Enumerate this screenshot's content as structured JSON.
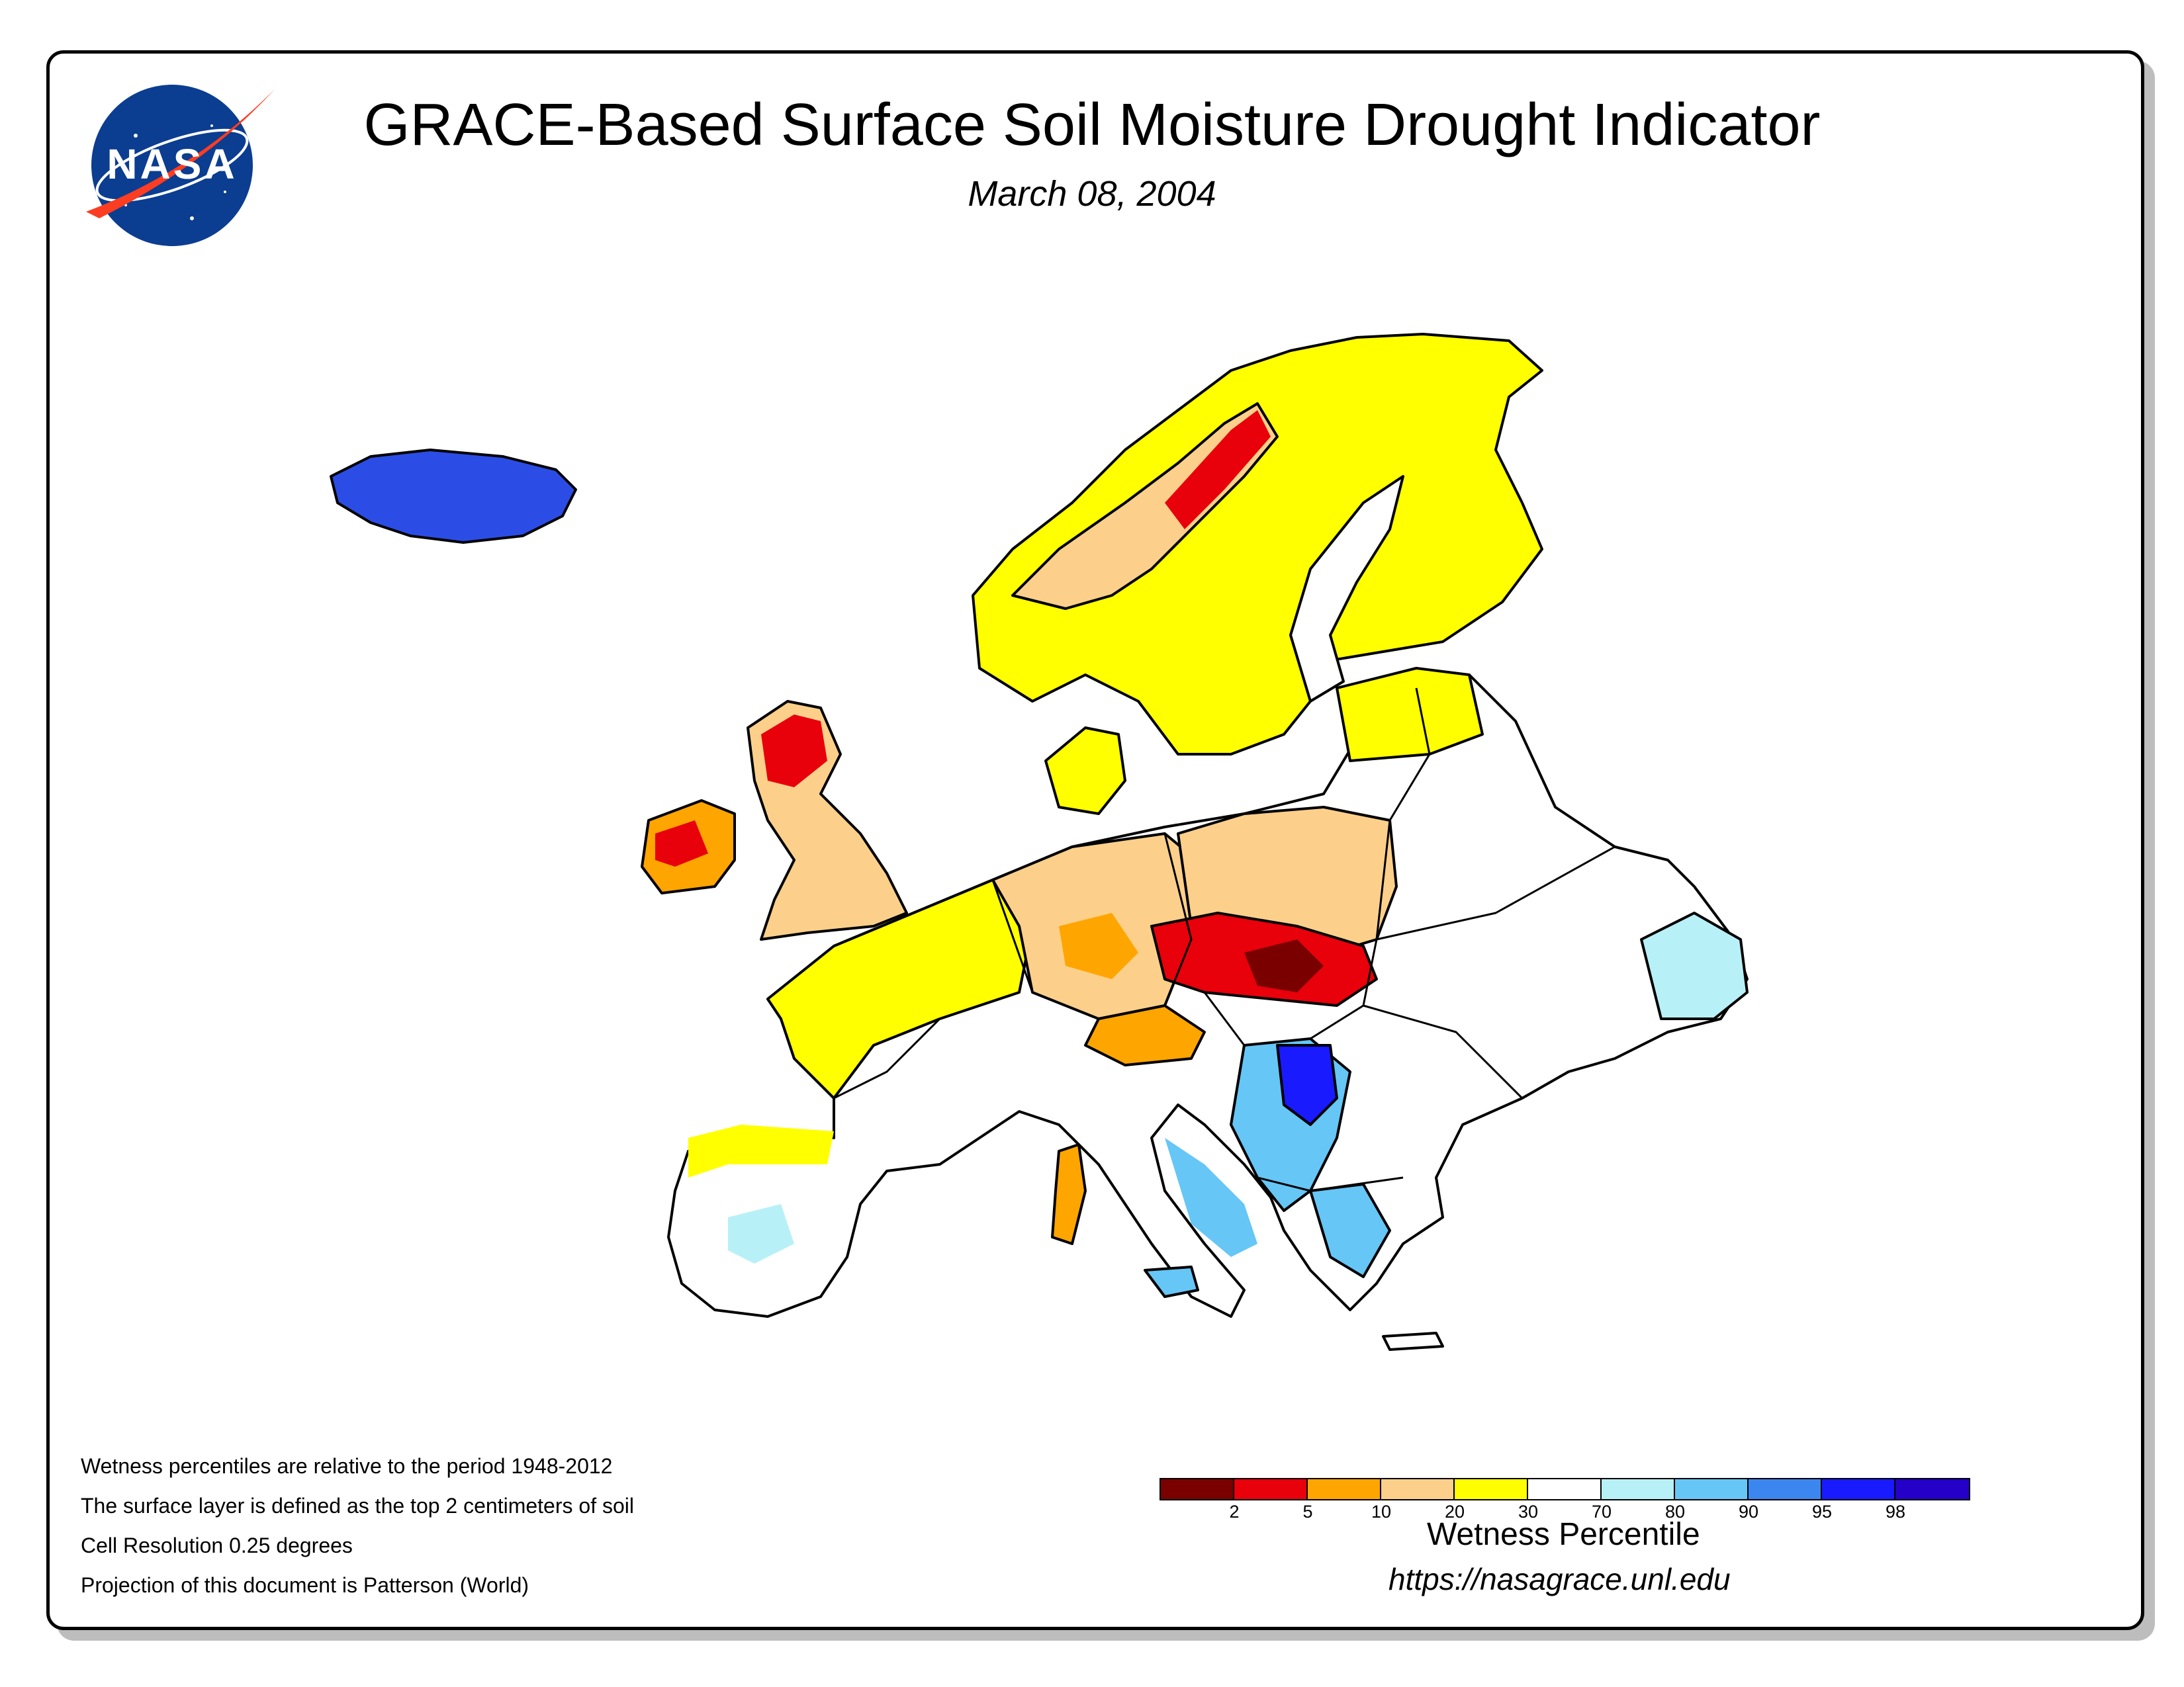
{
  "header": {
    "title": "GRACE-Based Surface Soil Moisture Drought Indicator",
    "date": "March 08, 2004",
    "logo_text": "NASA"
  },
  "notes": [
    "Wetness percentiles are relative to the period 1948-2012",
    "The surface layer is defined as the top 2 centimeters of soil",
    "Cell Resolution 0.25 degrees",
    "Projection of this document is Patterson (World)"
  ],
  "legend": {
    "title": "Wetness Percentile",
    "colors": [
      "#7a0000",
      "#e8000b",
      "#ffa500",
      "#fcd08a",
      "#ffff00",
      "#ffffff",
      "#b8f0f8",
      "#66c6f6",
      "#3c86f0",
      "#1a1aff",
      "#2400c8"
    ],
    "ticks": [
      "2",
      "5",
      "10",
      "20",
      "30",
      "70",
      "80",
      "90",
      "95",
      "98"
    ]
  },
  "footer": {
    "url": "https://nasagrace.unl.edu"
  },
  "map": {
    "region": "Europe",
    "colors": {
      "ocean": "#ffffff",
      "border": "#000000",
      "drought_extreme": "#7a0000",
      "drought_severe": "#e8000b",
      "drought_moderate": "#ffa500",
      "drought_mild": "#fcd08a",
      "dry": "#ffff00",
      "normal": "#ffffff",
      "wet_mild": "#b8f0f8",
      "wet": "#66c6f6",
      "very_wet": "#3c86f0",
      "extreme_wet": "#1a1aff"
    }
  }
}
